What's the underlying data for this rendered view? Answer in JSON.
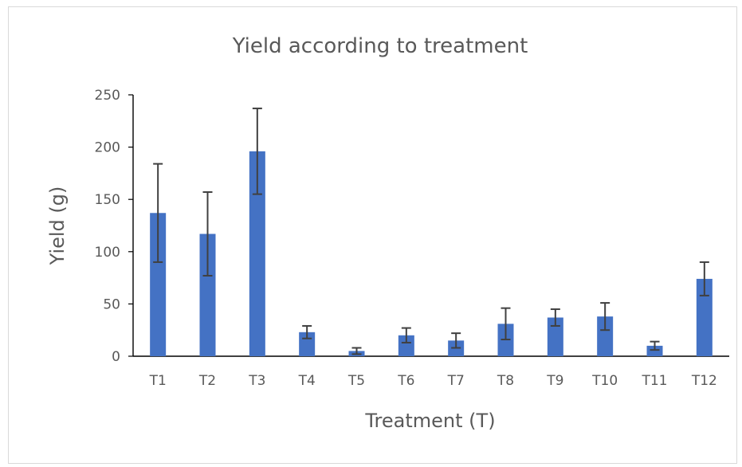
{
  "chart_data": {
    "type": "bar",
    "title": "Yield according to treatment",
    "xlabel": "Treatment (T)",
    "ylabel": "Yield (g)",
    "ylim": [
      0,
      250
    ],
    "yticks": [
      0,
      50,
      100,
      150,
      200,
      250
    ],
    "grid": false,
    "legend": "none",
    "categories": [
      "T1",
      "T2",
      "T3",
      "T4",
      "T5",
      "T6",
      "T7",
      "T8",
      "T9",
      "T10",
      "T11",
      "T12"
    ],
    "values": [
      137,
      117,
      196,
      23,
      5,
      20,
      15,
      31,
      37,
      38,
      10,
      74
    ],
    "error": [
      47,
      40,
      41,
      6,
      3,
      7,
      7,
      15,
      8,
      13,
      4,
      16
    ],
    "colors": {
      "bar": "#4472c4",
      "error_bar": "#404040",
      "axis": "#000000",
      "text": "#595959"
    }
  }
}
